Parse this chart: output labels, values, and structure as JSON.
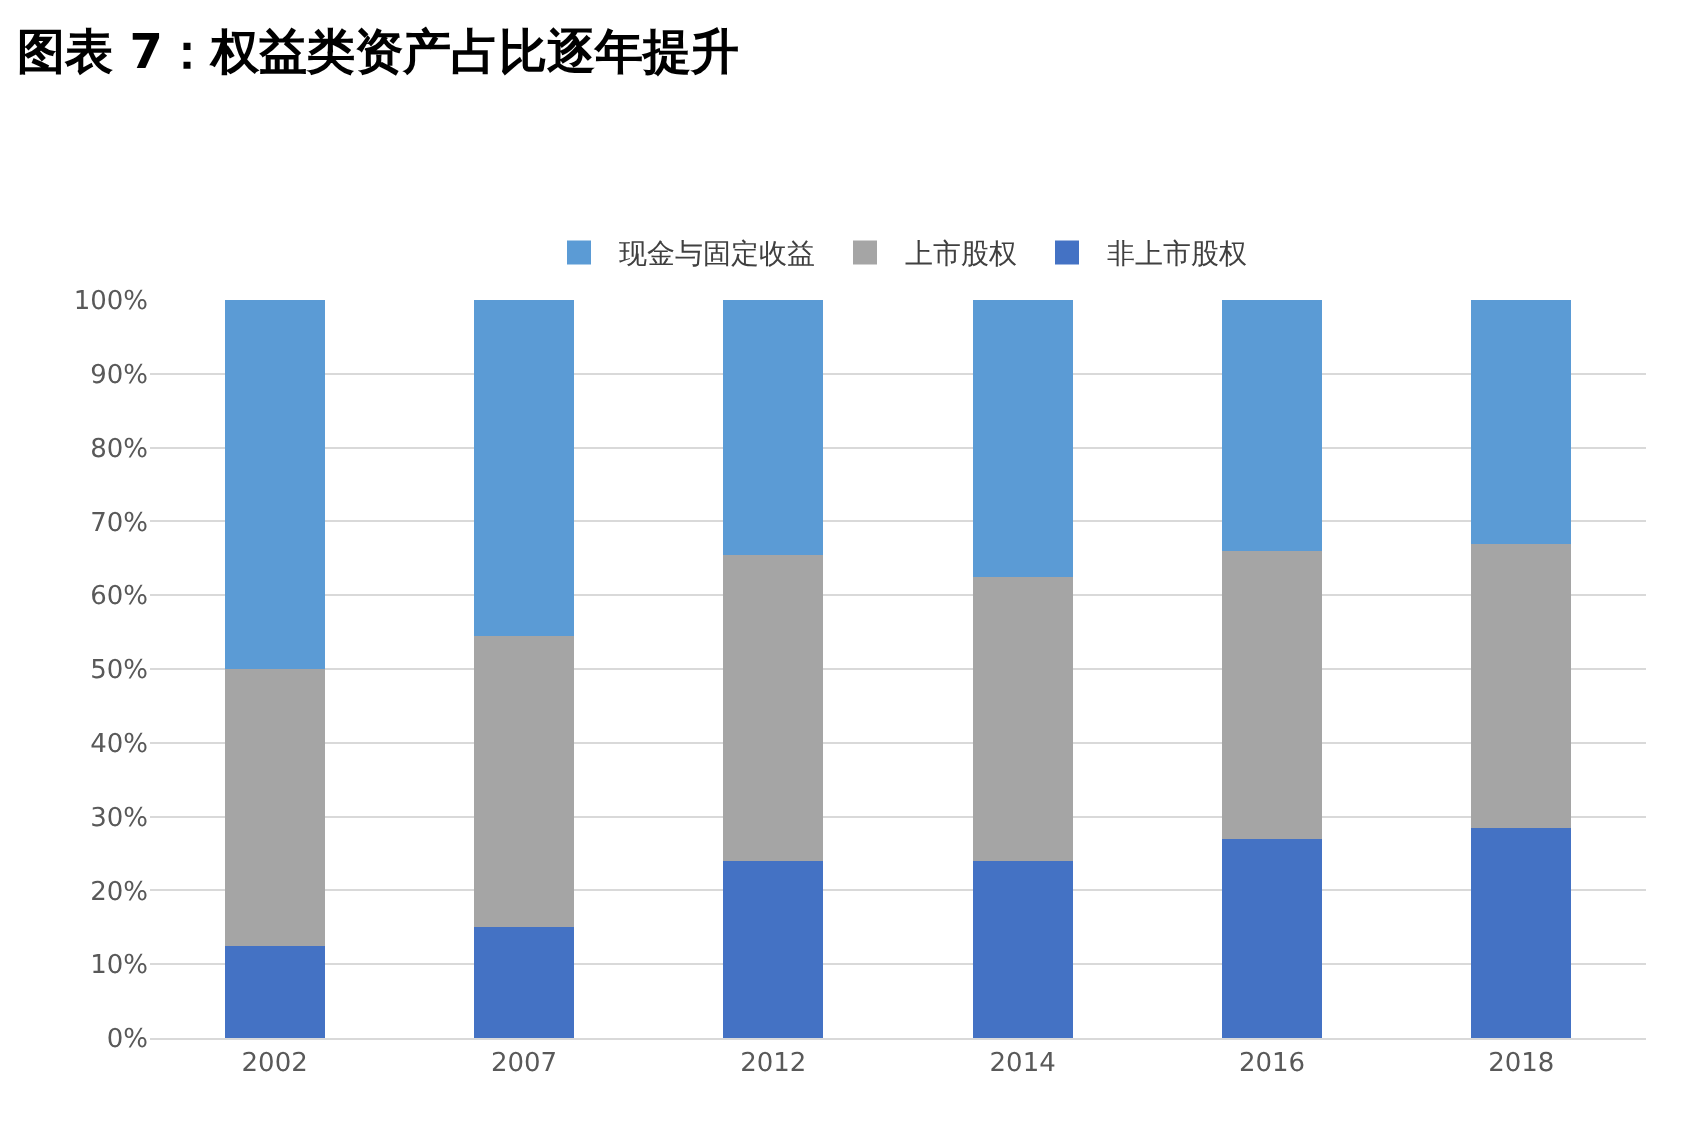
{
  "chart_data": {
    "type": "bar",
    "title": "图表 7：权益类资产占比逐年提升",
    "stacked": true,
    "categories": [
      "2002",
      "2007",
      "2012",
      "2014",
      "2016",
      "2018"
    ],
    "series": [
      {
        "name": "非上市股权",
        "color": "#4472c4",
        "values": [
          12.5,
          15,
          24,
          24,
          27,
          28.5
        ]
      },
      {
        "name": "上市股权",
        "color": "#a5a5a5",
        "values": [
          37.5,
          39.5,
          41.5,
          38.5,
          39,
          38.5
        ]
      },
      {
        "name": "现金与固定收益",
        "color": "#5b9bd5",
        "values": [
          50,
          45.5,
          34.5,
          37.5,
          34,
          33
        ]
      }
    ],
    "ylim": [
      0,
      100
    ],
    "yticks": [
      {
        "value": 0,
        "label": "0%"
      },
      {
        "value": 10,
        "label": "10%"
      },
      {
        "value": 20,
        "label": "20%"
      },
      {
        "value": 30,
        "label": "30%"
      },
      {
        "value": 40,
        "label": "40%"
      },
      {
        "value": 50,
        "label": "50%"
      },
      {
        "value": 60,
        "label": "60%"
      },
      {
        "value": 70,
        "label": "70%"
      },
      {
        "value": 80,
        "label": "80%"
      },
      {
        "value": 90,
        "label": "90%"
      },
      {
        "value": 100,
        "label": "100%"
      }
    ],
    "grid": "y",
    "legend": "top"
  }
}
